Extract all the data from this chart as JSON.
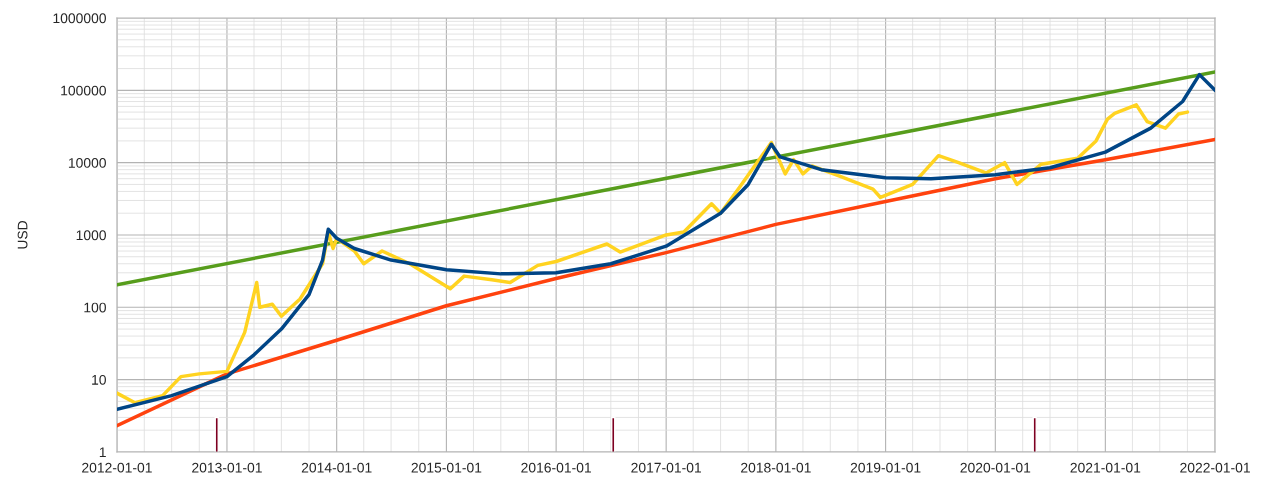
{
  "chart_data": {
    "type": "line",
    "ylabel": "USD",
    "log": "y",
    "grid": true,
    "marker": "none",
    "line_style": "solid",
    "xlim": [
      "2012-01-01",
      "2022-01-01"
    ],
    "xticks": [
      "2012-01-01",
      "2013-01-01",
      "2014-01-01",
      "2015-01-01",
      "2016-01-01",
      "2017-01-01",
      "2018-01-01",
      "2019-01-01",
      "2020-01-01",
      "2021-01-01",
      "2022-01-01"
    ],
    "ylim": [
      1,
      1000000
    ],
    "yticks": [
      1,
      10,
      100,
      1000,
      10000,
      100000,
      1000000
    ],
    "series": [
      {
        "type": "bar",
        "color": "#7e0021",
        "x": [
          "2012-11-28",
          "2016-07-09",
          "2020-05-11"
        ],
        "values": [
          3,
          3,
          3
        ]
      },
      {
        "color": "#579d1c",
        "x": [
          "2012-01-01",
          "2022-01-01"
        ],
        "values": [
          204,
          180000
        ]
      },
      {
        "color": "#ff420e",
        "x": [
          "2012-01-01",
          "2013-01-01",
          "2014-01-01",
          "2015-01-01",
          "2016-01-01",
          "2017-01-01",
          "2018-01-01",
          "2019-01-01",
          "2020-01-01",
          "2021-01-01",
          "2022-01-01"
        ],
        "values": [
          2.3,
          12,
          35,
          105,
          250,
          570,
          1400,
          2900,
          6000,
          11000,
          21000
        ]
      },
      {
        "color": "#ffd320",
        "x": [
          "2012-01-01",
          "2012-03-01",
          "2012-06-01",
          "2012-08-01",
          "2012-10-01",
          "2013-01-01",
          "2013-03-01",
          "2013-04-10",
          "2013-04-20",
          "2013-06-01",
          "2013-07-01",
          "2013-09-01",
          "2013-11-15",
          "2013-12-04",
          "2013-12-20",
          "2014-01-01",
          "2014-03-01",
          "2014-04-01",
          "2014-06-01",
          "2014-09-01",
          "2015-01-14",
          "2015-03-01",
          "2015-06-01",
          "2015-08-01",
          "2015-11-01",
          "2016-01-01",
          "2016-06-18",
          "2016-08-01",
          "2017-01-01",
          "2017-03-01",
          "2017-06-01",
          "2017-07-01",
          "2017-09-01",
          "2017-12-17",
          "2018-02-01",
          "2018-03-01",
          "2018-04-01",
          "2018-05-01",
          "2018-08-01",
          "2018-11-20",
          "2018-12-15",
          "2019-04-01",
          "2019-06-26",
          "2019-09-01",
          "2019-12-01",
          "2020-02-01",
          "2020-03-13",
          "2020-06-01",
          "2020-10-01",
          "2020-12-01",
          "2021-01-08",
          "2021-02-01",
          "2021-04-14",
          "2021-05-20",
          "2021-07-20",
          "2021-09-01",
          "2021-10-01"
        ],
        "values": [
          6.5,
          4.8,
          6,
          11,
          12,
          13,
          45,
          220,
          100,
          110,
          75,
          130,
          400,
          1100,
          650,
          900,
          600,
          400,
          600,
          400,
          180,
          270,
          240,
          220,
          380,
          430,
          750,
          580,
          1000,
          1100,
          2700,
          2000,
          4500,
          19000,
          7000,
          11000,
          7000,
          9000,
          6500,
          4300,
          3300,
          5000,
          12500,
          10000,
          7200,
          10000,
          5000,
          9500,
          11500,
          20000,
          40000,
          48000,
          63000,
          37000,
          30000,
          47000,
          50000
        ]
      },
      {
        "color": "#004586",
        "x": [
          "2012-01-01",
          "2012-07-01",
          "2013-01-01",
          "2013-04-01",
          "2013-07-01",
          "2013-10-01",
          "2013-11-15",
          "2013-12-04",
          "2014-01-01",
          "2014-03-01",
          "2014-07-01",
          "2015-01-01",
          "2015-07-01",
          "2016-01-01",
          "2016-07-01",
          "2017-01-01",
          "2017-07-01",
          "2017-10-01",
          "2017-12-17",
          "2018-01-15",
          "2018-06-01",
          "2019-01-01",
          "2019-06-01",
          "2020-01-01",
          "2020-07-01",
          "2021-01-01",
          "2021-06-01",
          "2021-09-15",
          "2021-11-10",
          "2022-01-01"
        ],
        "values": [
          3.9,
          6,
          11,
          22,
          50,
          150,
          450,
          1200,
          900,
          650,
          450,
          330,
          290,
          300,
          400,
          700,
          2000,
          5000,
          18000,
          12000,
          8000,
          6200,
          6000,
          6800,
          8500,
          14000,
          30000,
          70000,
          165000,
          100000
        ]
      }
    ]
  }
}
